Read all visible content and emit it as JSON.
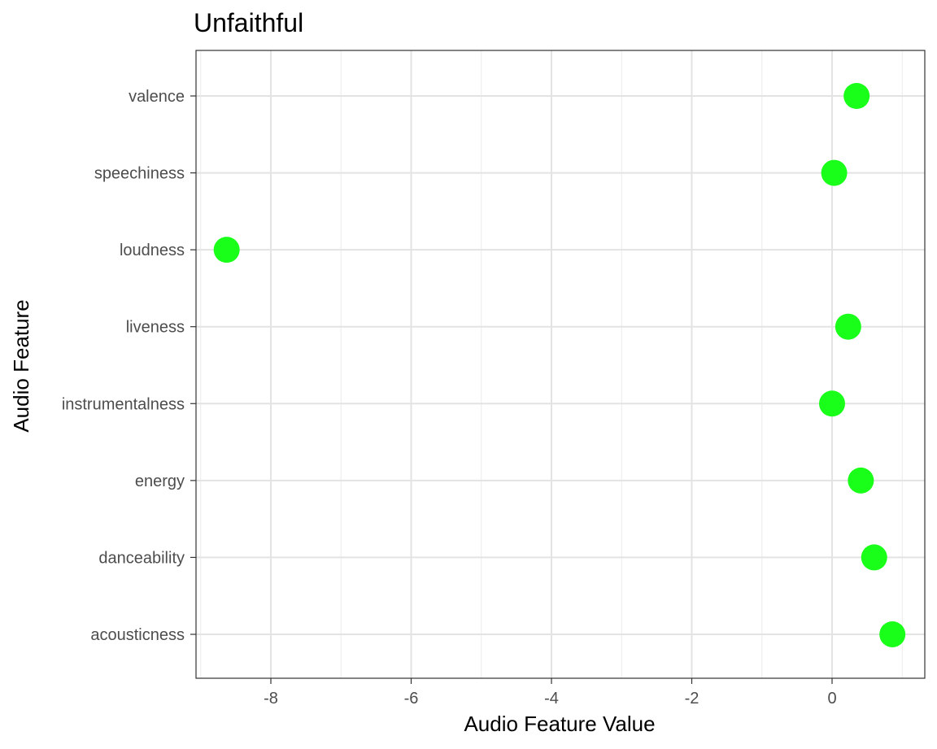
{
  "chart_data": {
    "type": "scatter",
    "title": "Unfaithful",
    "xlabel": "Audio Feature Value",
    "ylabel": "Audio Feature",
    "categories": [
      "acousticness",
      "danceability",
      "energy",
      "instrumentalness",
      "liveness",
      "loudness",
      "speechiness",
      "valence"
    ],
    "values": [
      0.86,
      0.6,
      0.41,
      0.0,
      0.23,
      -8.63,
      0.03,
      0.35
    ],
    "x_ticks": [
      -8,
      -6,
      -4,
      -2,
      0
    ],
    "x_tick_labels": [
      "-8",
      "-6",
      "-4",
      "-2",
      "0"
    ],
    "xlim": [
      -9.1,
      1.3
    ],
    "grid": true,
    "point_color": "#1aff1a"
  }
}
